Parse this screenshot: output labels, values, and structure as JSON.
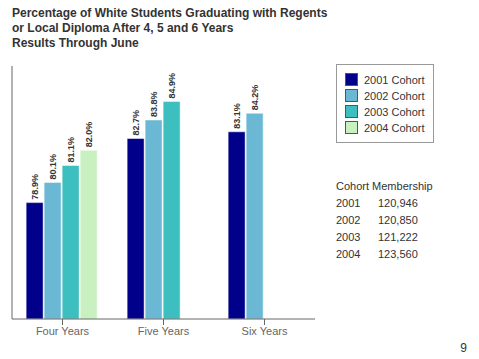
{
  "chart_data": {
    "type": "bar",
    "title": "Percentage of White Students Graduating with Regents\nor Local Diploma After 4, 5 and 6 Years\nResults Through June",
    "categories": [
      "Four Years",
      "Five Years",
      "Six Years"
    ],
    "series": [
      {
        "name": "2001 Cohort",
        "color": "#00008B",
        "values": [
          78.9,
          82.7,
          83.1
        ],
        "value_labels": [
          "78.9%",
          "82.7%",
          "83.1%"
        ]
      },
      {
        "name": "2002 Cohort",
        "color": "#6BB8D4",
        "values": [
          80.1,
          83.8,
          84.2
        ],
        "value_labels": [
          "80.1%",
          "83.8%",
          "84.2%"
        ]
      },
      {
        "name": "2003 Cohort",
        "color": "#3DBFBF",
        "values": [
          81.1,
          84.9,
          null
        ],
        "value_labels": [
          "81.1%",
          "84.9%",
          null
        ]
      },
      {
        "name": "2004 Cohort",
        "color": "#C8F0C0",
        "values": [
          82.0,
          null,
          null
        ],
        "value_labels": [
          "82.0%",
          null,
          null
        ]
      }
    ],
    "ylim": [
      72,
      87
    ],
    "tick_labels": "x",
    "data_labels": true,
    "grid": false,
    "legend": "upper right",
    "table": {
      "title": "Cohort Membership",
      "rows": [
        [
          "2001",
          "120,946"
        ],
        [
          "2002",
          "120,850"
        ],
        [
          "2003",
          "121,222"
        ],
        [
          "2004",
          "123,560"
        ]
      ]
    },
    "page_number": "9"
  }
}
